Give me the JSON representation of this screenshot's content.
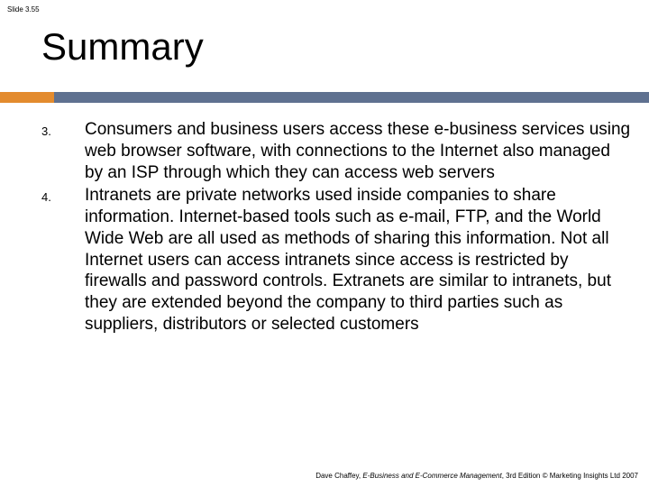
{
  "slide_number": "Slide 3.55",
  "title": "Summary",
  "divider": {
    "left_color": "#e38b2e",
    "right_color": "#5f7190"
  },
  "items": [
    {
      "num": "3.",
      "text": "Consumers and business users access these e-business services using web browser software, with connections to the Internet also managed by an ISP through which they can access web servers"
    },
    {
      "num": "4.",
      "text": "Intranets are private networks used inside companies to share information. Internet-based tools such as e-mail, FTP, and the World Wide Web are all used as methods of sharing this information. Not all Internet users can access intranets since access is restricted by firewalls and password controls. Extranets are similar to intranets, but they are extended beyond the company to third parties such as suppliers, distributors or selected customers"
    }
  ],
  "footer": {
    "author": "Dave Chaffey, ",
    "book": "E-Business and E-Commerce Management",
    "rest": ", 3rd Edition © Marketing Insights Ltd 2007"
  }
}
